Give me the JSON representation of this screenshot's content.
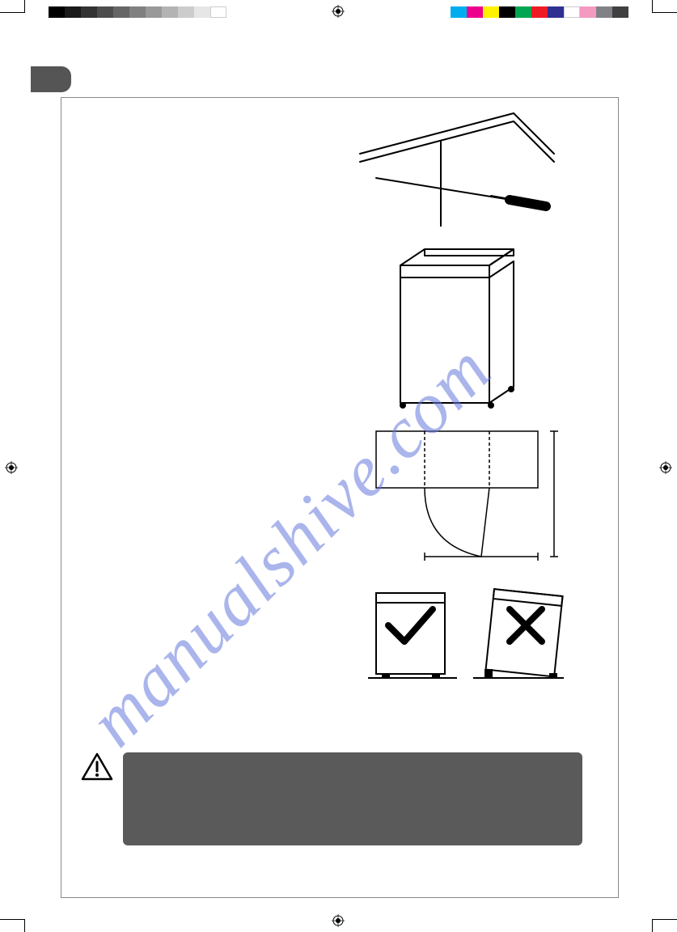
{
  "watermark_text": "manualshive.com",
  "printer_marks": {
    "grayscale_swatches": [
      "#000000",
      "#1a1a1a",
      "#333333",
      "#4d4d4d",
      "#666666",
      "#808080",
      "#999999",
      "#b3b3b3",
      "#cccccc",
      "#e6e6e6",
      "#ffffff"
    ],
    "color_swatches": [
      "#00aeef",
      "#ec008c",
      "#fff200",
      "#000000",
      "#00a651",
      "#ed1c24",
      "#2e3192",
      "#ffffff",
      "#f49ac1",
      "#808285",
      "#404041"
    ]
  },
  "page": {
    "tab_color": "#555555",
    "border_color": "#888888",
    "warning_box_color": "#5a5a5a"
  },
  "illustrations": {
    "fig1": {
      "type": "line-drawing",
      "subject": "screwdriver adjusting under worktop"
    },
    "fig2": {
      "type": "line-drawing",
      "subject": "small refrigerator cabinet"
    },
    "fig3": {
      "type": "line-drawing",
      "subject": "top-view door swing clearance diagram"
    },
    "fig4": {
      "type": "line-drawing",
      "subject": "level vs tilted appliance with check and cross marks"
    }
  }
}
